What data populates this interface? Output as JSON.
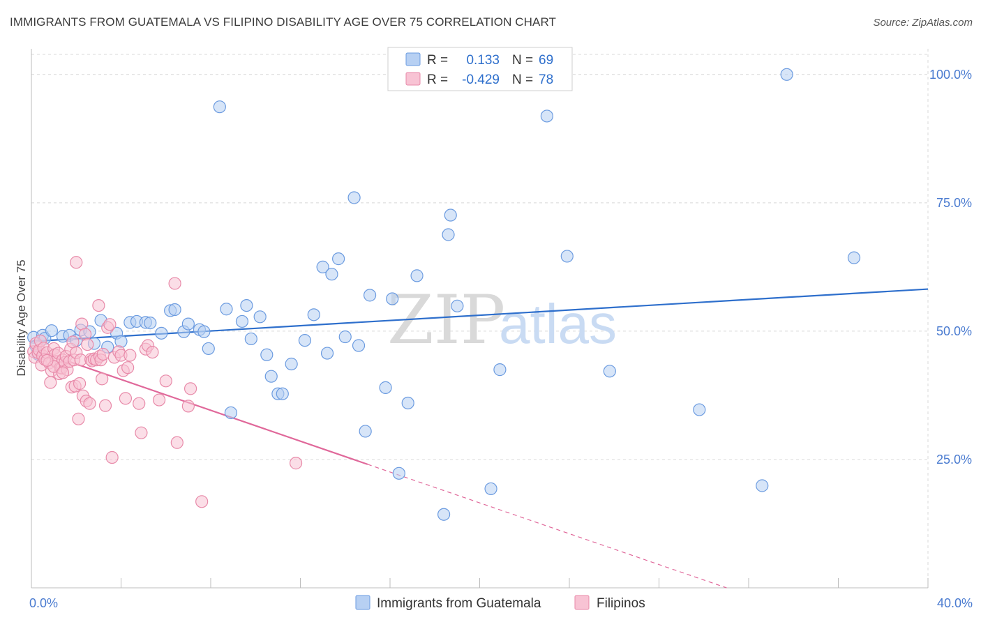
{
  "header": {
    "title": "IMMIGRANTS FROM GUATEMALA VS FILIPINO DISABILITY AGE OVER 75 CORRELATION CHART",
    "source": "Source: ZipAtlas.com"
  },
  "watermark": {
    "zip": "ZIP",
    "atlas": "atlas"
  },
  "colors": {
    "blue_fill": "#b7d0f3",
    "blue_stroke": "#6b9be0",
    "blue_line": "#2e6fcc",
    "pink_fill": "#f8c3d4",
    "pink_stroke": "#e88aa9",
    "pink_line": "#e0689a",
    "grid": "#d8d8d8",
    "tick_text": "#4a7bd0"
  },
  "stats_legend": {
    "rows": [
      {
        "r_label": "R =",
        "r_value": "0.133",
        "n_label": "N =",
        "n_value": "69",
        "series": "blue"
      },
      {
        "r_label": "R =",
        "r_value": "-0.429",
        "n_label": "N =",
        "n_value": "78",
        "series": "pink"
      }
    ]
  },
  "bottom_legend": {
    "items": [
      {
        "label": "Immigrants from Guatemala",
        "series": "blue"
      },
      {
        "label": "Filipinos",
        "series": "pink"
      }
    ]
  },
  "chart_data": {
    "type": "scatter",
    "title": "IMMIGRANTS FROM GUATEMALA VS FILIPINO DISABILITY AGE OVER 75 CORRELATION CHART",
    "ylabel": "Disability Age Over 75",
    "xlabel": "",
    "xlim": [
      0,
      40
    ],
    "ylim": [
      0,
      105
    ],
    "x_tick_labels": [
      {
        "value": 0,
        "label": "0.0%"
      },
      {
        "value": 40,
        "label": "40.0%"
      }
    ],
    "y_tick_labels": [
      {
        "value": 25,
        "label": "25.0%"
      },
      {
        "value": 50,
        "label": "50.0%"
      },
      {
        "value": 75,
        "label": "75.0%"
      },
      {
        "value": 100,
        "label": "100.0%"
      }
    ],
    "grid": true,
    "legend_position": "top-center",
    "series": [
      {
        "name": "Immigrants from Guatemala",
        "color": "#6b9be0",
        "trend": {
          "x": [
            0,
            40
          ],
          "y": [
            48.0,
            58.2
          ],
          "dashed_from": null
        },
        "points": [
          [
            0.1,
            48.8
          ],
          [
            0.2,
            47.1
          ],
          [
            0.3,
            45.5
          ],
          [
            0.5,
            49.2
          ],
          [
            0.6,
            48.6
          ],
          [
            0.9,
            50.1
          ],
          [
            1.4,
            49.0
          ],
          [
            1.7,
            49.2
          ],
          [
            2.0,
            48.2
          ],
          [
            2.2,
            50.2
          ],
          [
            2.6,
            49.9
          ],
          [
            2.8,
            47.6
          ],
          [
            3.1,
            52.1
          ],
          [
            3.4,
            46.9
          ],
          [
            3.8,
            49.6
          ],
          [
            4.0,
            48.0
          ],
          [
            4.4,
            51.7
          ],
          [
            4.7,
            51.9
          ],
          [
            5.1,
            51.7
          ],
          [
            5.3,
            51.6
          ],
          [
            5.8,
            49.6
          ],
          [
            6.2,
            54.0
          ],
          [
            6.4,
            54.2
          ],
          [
            6.8,
            49.9
          ],
          [
            7.0,
            51.4
          ],
          [
            7.5,
            50.3
          ],
          [
            7.7,
            49.9
          ],
          [
            7.9,
            46.6
          ],
          [
            8.4,
            93.7
          ],
          [
            8.7,
            54.3
          ],
          [
            8.9,
            34.1
          ],
          [
            9.4,
            51.9
          ],
          [
            9.6,
            55.0
          ],
          [
            9.8,
            48.5
          ],
          [
            10.2,
            52.8
          ],
          [
            10.5,
            45.4
          ],
          [
            10.7,
            41.2
          ],
          [
            11.0,
            37.8
          ],
          [
            11.2,
            37.8
          ],
          [
            11.6,
            43.6
          ],
          [
            12.2,
            48.2
          ],
          [
            12.6,
            53.2
          ],
          [
            13.0,
            62.5
          ],
          [
            13.2,
            45.7
          ],
          [
            13.4,
            61.1
          ],
          [
            13.7,
            64.1
          ],
          [
            14.0,
            48.9
          ],
          [
            14.4,
            76.0
          ],
          [
            14.6,
            47.2
          ],
          [
            14.9,
            30.5
          ],
          [
            15.1,
            57.0
          ],
          [
            15.8,
            39.0
          ],
          [
            16.1,
            56.3
          ],
          [
            16.4,
            22.3
          ],
          [
            16.8,
            36.0
          ],
          [
            17.2,
            60.8
          ],
          [
            18.4,
            14.3
          ],
          [
            18.6,
            68.8
          ],
          [
            18.7,
            72.6
          ],
          [
            19.0,
            54.9
          ],
          [
            20.5,
            19.3
          ],
          [
            20.9,
            42.5
          ],
          [
            21.8,
            100.0
          ],
          [
            23.0,
            91.9
          ],
          [
            23.9,
            64.6
          ],
          [
            25.8,
            42.2
          ],
          [
            29.8,
            34.7
          ],
          [
            32.6,
            19.9
          ],
          [
            33.7,
            100.0
          ],
          [
            36.7,
            64.3
          ]
        ]
      },
      {
        "name": "Filipinos",
        "color": "#e88aa9",
        "trend": {
          "x": [
            0,
            40
          ],
          "y": [
            46.6,
            -13.5
          ],
          "dashed_from": 15.0
        },
        "points": [
          [
            0.1,
            46.0
          ],
          [
            0.15,
            44.9
          ],
          [
            0.2,
            47.6
          ],
          [
            0.3,
            45.8
          ],
          [
            0.35,
            46.3
          ],
          [
            0.4,
            48.1
          ],
          [
            0.45,
            43.4
          ],
          [
            0.5,
            45.2
          ],
          [
            0.55,
            46.7
          ],
          [
            0.6,
            44.5
          ],
          [
            0.7,
            45.8
          ],
          [
            0.8,
            43.8
          ],
          [
            0.85,
            40.0
          ],
          [
            0.9,
            42.3
          ],
          [
            1.0,
            46.6
          ],
          [
            1.05,
            45.4
          ],
          [
            1.1,
            44.1
          ],
          [
            1.2,
            45.7
          ],
          [
            1.25,
            41.7
          ],
          [
            1.3,
            42.9
          ],
          [
            1.35,
            42.8
          ],
          [
            1.4,
            44.4
          ],
          [
            1.5,
            43.9
          ],
          [
            1.55,
            45.1
          ],
          [
            1.6,
            42.5
          ],
          [
            1.7,
            44.1
          ],
          [
            1.75,
            46.5
          ],
          [
            1.8,
            39.1
          ],
          [
            1.85,
            47.9
          ],
          [
            1.9,
            44.4
          ],
          [
            1.95,
            39.3
          ],
          [
            2.0,
            45.8
          ],
          [
            2.1,
            32.9
          ],
          [
            2.15,
            39.8
          ],
          [
            2.2,
            44.4
          ],
          [
            2.25,
            51.4
          ],
          [
            2.3,
            37.4
          ],
          [
            2.4,
            49.4
          ],
          [
            2.45,
            36.4
          ],
          [
            2.5,
            47.4
          ],
          [
            2.6,
            35.9
          ],
          [
            2.65,
            44.5
          ],
          [
            2.7,
            44.2
          ],
          [
            2.8,
            44.6
          ],
          [
            2.9,
            44.4
          ],
          [
            3.0,
            55.0
          ],
          [
            3.05,
            45.1
          ],
          [
            3.1,
            44.4
          ],
          [
            3.15,
            40.7
          ],
          [
            3.2,
            45.5
          ],
          [
            3.3,
            35.5
          ],
          [
            3.4,
            50.7
          ],
          [
            3.5,
            51.3
          ],
          [
            3.6,
            25.4
          ],
          [
            3.7,
            44.9
          ],
          [
            3.9,
            46.0
          ],
          [
            4.0,
            45.3
          ],
          [
            4.1,
            42.3
          ],
          [
            4.2,
            36.9
          ],
          [
            4.3,
            42.9
          ],
          [
            4.4,
            45.3
          ],
          [
            4.8,
            35.9
          ],
          [
            4.9,
            30.2
          ],
          [
            5.1,
            46.5
          ],
          [
            5.2,
            47.2
          ],
          [
            5.4,
            45.9
          ],
          [
            5.7,
            36.6
          ],
          [
            6.0,
            40.3
          ],
          [
            6.4,
            59.3
          ],
          [
            6.5,
            28.3
          ],
          [
            7.0,
            35.4
          ],
          [
            7.1,
            38.8
          ],
          [
            7.6,
            16.8
          ],
          [
            11.8,
            24.3
          ],
          [
            2.0,
            63.4
          ],
          [
            1.0,
            43.1
          ],
          [
            0.7,
            44.3
          ],
          [
            1.4,
            41.9
          ]
        ]
      }
    ]
  }
}
